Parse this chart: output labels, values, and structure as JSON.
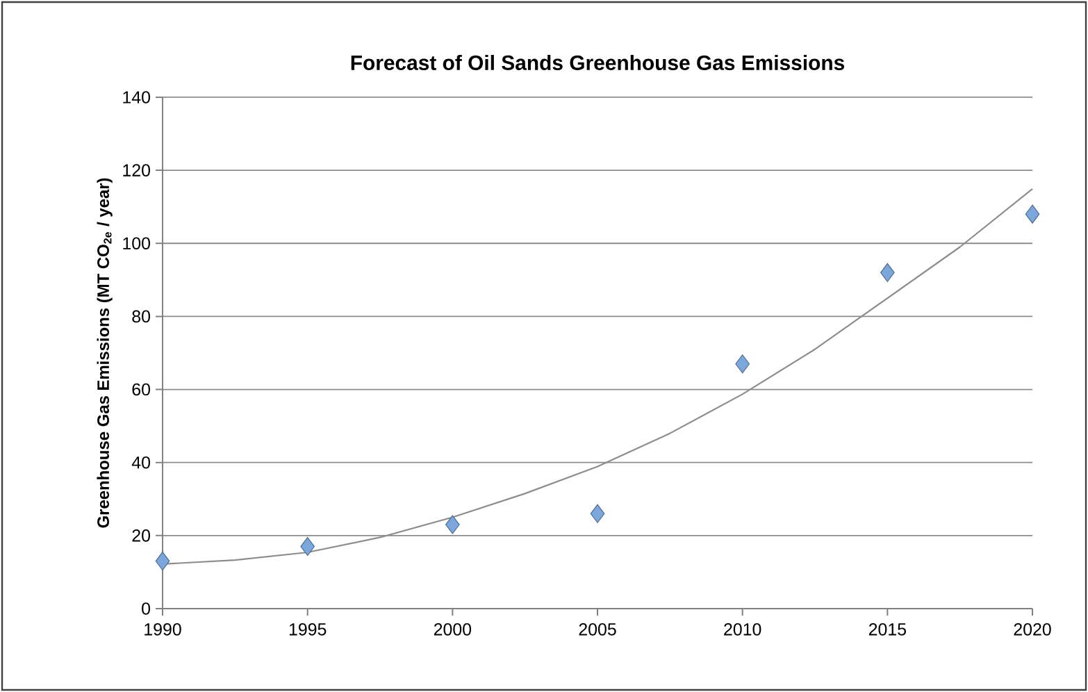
{
  "chart_data": {
    "type": "scatter",
    "title": "Forecast of Oil Sands Greenhouse Gas Emissions",
    "ylabel": "Greenhouse Gas Emissions (MT CO$_{2e}$ / year)",
    "x": [
      1990,
      1995,
      2000,
      2005,
      2010,
      2015,
      2020
    ],
    "series": [
      {
        "color": "#7ba7dc",
        "marker": "diamond",
        "values": [
          13,
          17,
          23,
          26,
          67,
          92,
          108
        ]
      },
      {
        "type": "line",
        "color": "#8c8c8c",
        "marker": "none",
        "x": [
          1990,
          1992.5,
          1995,
          1997.5,
          2000,
          2002.5,
          2005,
          2007.5,
          2010,
          2012.5,
          2015,
          2017.5,
          2020
        ],
        "values": [
          12.2,
          13.3,
          15.4,
          19.5,
          25,
          31.5,
          38.9,
          48,
          58.7,
          71,
          85,
          99,
          114.9
        ]
      }
    ],
    "xlim": [
      1990,
      2020
    ],
    "ylim": [
      0,
      140
    ],
    "xticks": [
      1990,
      1995,
      2000,
      2005,
      2010,
      2015,
      2020
    ],
    "yticks": [
      0,
      20,
      40,
      60,
      80,
      100,
      120,
      140
    ],
    "grid": "y"
  }
}
